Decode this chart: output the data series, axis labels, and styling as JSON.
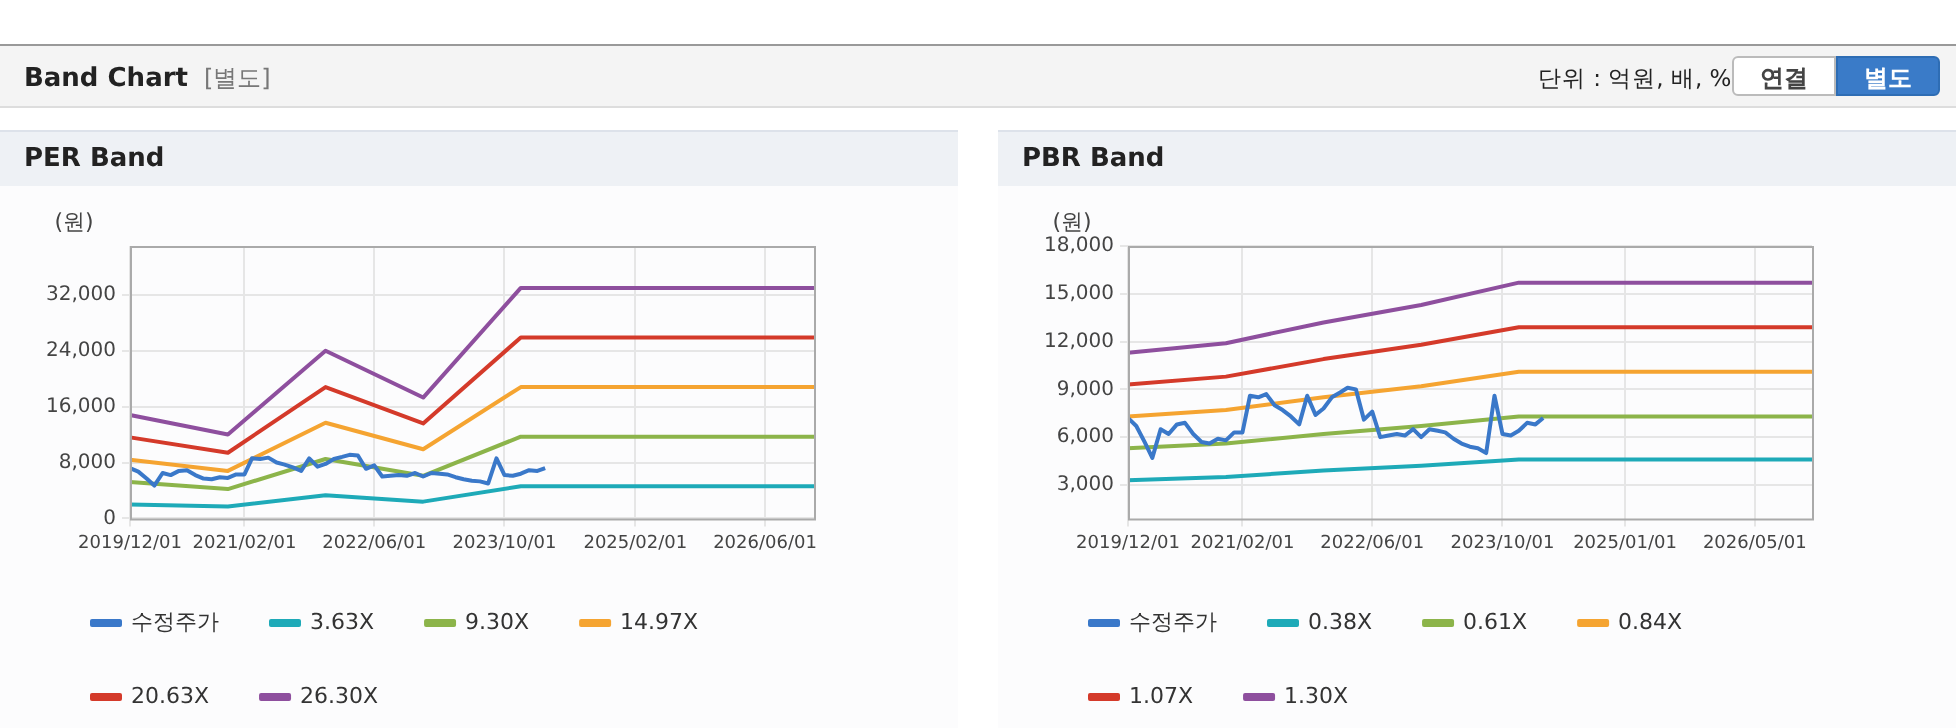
{
  "chart_data": [
    {
      "type": "other",
      "title": "Band Chart",
      "subtitle": "[별도]",
      "annotations": [
        "단위 : 억원, 배, %",
        "연결",
        "별도"
      ]
    },
    {
      "type": "line",
      "title": "PER Band",
      "ylabel": "(원)",
      "legend": "bottom",
      "grid": true,
      "marker": "none",
      "line_style": "solid",
      "xlim": [
        "2019-12-01",
        "2026-12-01"
      ],
      "xticks": [
        {
          "value": "2019-12-01",
          "label": "2019/12/01"
        },
        {
          "value": "2021-02-01",
          "label": "2021/02/01"
        },
        {
          "value": "2022-06-01",
          "label": "2022/06/01"
        },
        {
          "value": "2023-10-01",
          "label": "2023/10/01"
        },
        {
          "value": "2025-02-01",
          "label": "2025/02/01"
        },
        {
          "value": "2026-06-01",
          "label": "2026/06/01"
        }
      ],
      "ylim": [
        0,
        39000
      ],
      "yticks": [
        0,
        {
          "value": 8000,
          "label": "8,000"
        },
        {
          "value": 16000,
          "label": "16,000"
        },
        {
          "value": 24000,
          "label": "24,000"
        },
        {
          "value": 32000,
          "label": "32,000"
        }
      ],
      "series": [
        {
          "name": "수정주가",
          "color": "#3a78c9",
          "x": [
            "2019-12",
            "2020-01",
            "2020-02",
            "2020-03",
            "2020-04",
            "2020-05",
            "2020-06",
            "2020-07",
            "2020-08",
            "2020-09",
            "2020-10",
            "2020-11",
            "2020-12",
            "2021-01",
            "2021-02",
            "2021-03",
            "2021-04",
            "2021-05",
            "2021-06",
            "2021-07",
            "2021-08",
            "2021-09",
            "2021-10",
            "2021-11",
            "2021-12",
            "2022-01",
            "2022-02",
            "2022-03",
            "2022-04",
            "2022-05",
            "2022-06",
            "2022-07",
            "2022-08",
            "2022-09",
            "2022-10",
            "2022-11",
            "2022-12",
            "2023-01",
            "2023-02",
            "2023-03",
            "2023-04",
            "2023-05",
            "2023-06",
            "2023-07",
            "2023-08",
            "2023-09",
            "2023-10",
            "2023-11",
            "2023-12",
            "2024-01",
            "2024-02",
            "2024-03"
          ],
          "values": [
            7200,
            6700,
            5700,
            4700,
            6500,
            6200,
            6800,
            6900,
            6200,
            5700,
            5600,
            5900,
            5800,
            6300,
            6300,
            8600,
            8500,
            8700,
            8000,
            7700,
            7300,
            6800,
            8600,
            7400,
            7800,
            8500,
            8800,
            9100,
            9000,
            7100,
            7600,
            6000,
            6100,
            6200,
            6100,
            6500,
            6000,
            6500,
            6400,
            6300,
            5900,
            5600,
            5400,
            5300,
            5000,
            8600,
            6200,
            6100,
            6400,
            6900,
            6800,
            7200
          ]
        },
        {
          "name": "3.63X",
          "color": "#1eaab8",
          "x": [
            "2019-12",
            "2020-12",
            "2021-12",
            "2022-12",
            "2023-12",
            "2026-12"
          ],
          "values": [
            2000,
            1700,
            3300,
            2400,
            4600,
            4600
          ]
        },
        {
          "name": "9.30X",
          "color": "#8cb44a",
          "x": [
            "2019-12",
            "2020-12",
            "2021-12",
            "2022-12",
            "2023-12",
            "2026-12"
          ],
          "values": [
            5200,
            4200,
            8500,
            6100,
            11700,
            11700
          ]
        },
        {
          "name": "14.97X",
          "color": "#f5a431",
          "x": [
            "2019-12",
            "2020-12",
            "2021-12",
            "2022-12",
            "2023-12",
            "2026-12"
          ],
          "values": [
            8400,
            6800,
            13700,
            9900,
            18800,
            18800
          ]
        },
        {
          "name": "20.63X",
          "color": "#d43a2a",
          "x": [
            "2019-12",
            "2020-12",
            "2021-12",
            "2022-12",
            "2023-12",
            "2026-12"
          ],
          "values": [
            11600,
            9400,
            18800,
            13600,
            25900,
            25900
          ]
        },
        {
          "name": "26.30X",
          "color": "#8e4f9e",
          "x": [
            "2019-12",
            "2020-12",
            "2021-12",
            "2022-12",
            "2023-12",
            "2026-12"
          ],
          "values": [
            14800,
            12000,
            24000,
            17300,
            33000,
            33000
          ]
        }
      ]
    },
    {
      "type": "line",
      "title": "PBR Band",
      "ylabel": "(원)",
      "legend": "bottom",
      "grid": true,
      "marker": "none",
      "line_style": "solid",
      "xlim": [
        "2019-12-01",
        "2026-12-01"
      ],
      "xticks": [
        {
          "value": "2019-12-01",
          "label": "2019/12/01"
        },
        {
          "value": "2021-02-01",
          "label": "2021/02/01"
        },
        {
          "value": "2022-06-01",
          "label": "2022/06/01"
        },
        {
          "value": "2023-10-01",
          "label": "2023/10/01"
        },
        {
          "value": "2025-01-01",
          "label": "2025/01/01"
        },
        {
          "value": "2026-05-01",
          "label": "2026/05/01"
        }
      ],
      "ylim": [
        900,
        18000
      ],
      "yticks": [
        {
          "value": 3000,
          "label": "3,000"
        },
        {
          "value": 6000,
          "label": "6,000"
        },
        {
          "value": 9000,
          "label": "9,000"
        },
        {
          "value": 12000,
          "label": "12,000"
        },
        {
          "value": 15000,
          "label": "15,000"
        },
        {
          "value": 18000,
          "label": "18,000"
        }
      ],
      "series": [
        {
          "name": "수정주가",
          "color": "#3a78c9",
          "x": [
            "2019-12",
            "2020-01",
            "2020-02",
            "2020-03",
            "2020-04",
            "2020-05",
            "2020-06",
            "2020-07",
            "2020-08",
            "2020-09",
            "2020-10",
            "2020-11",
            "2020-12",
            "2021-01",
            "2021-02",
            "2021-03",
            "2021-04",
            "2021-05",
            "2021-06",
            "2021-07",
            "2021-08",
            "2021-09",
            "2021-10",
            "2021-11",
            "2021-12",
            "2022-01",
            "2022-02",
            "2022-03",
            "2022-04",
            "2022-05",
            "2022-06",
            "2022-07",
            "2022-08",
            "2022-09",
            "2022-10",
            "2022-11",
            "2022-12",
            "2023-01",
            "2023-02",
            "2023-03",
            "2023-04",
            "2023-05",
            "2023-06",
            "2023-07",
            "2023-08",
            "2023-09",
            "2023-10",
            "2023-11",
            "2023-12",
            "2024-01",
            "2024-02",
            "2024-03"
          ],
          "values": [
            7200,
            6700,
            5700,
            4700,
            6500,
            6200,
            6800,
            6900,
            6200,
            5700,
            5600,
            5900,
            5800,
            6300,
            6300,
            8600,
            8500,
            8700,
            8000,
            7700,
            7300,
            6800,
            8600,
            7400,
            7800,
            8500,
            8800,
            9100,
            9000,
            7100,
            7600,
            6000,
            6100,
            6200,
            6100,
            6500,
            6000,
            6500,
            6400,
            6300,
            5900,
            5600,
            5400,
            5300,
            5000,
            8600,
            6200,
            6100,
            6400,
            6900,
            6800,
            7200
          ]
        },
        {
          "name": "0.38X",
          "color": "#1eaab8",
          "x": [
            "2019-12",
            "2020-12",
            "2021-12",
            "2022-12",
            "2023-12",
            "2026-12"
          ],
          "values": [
            3300,
            3500,
            3900,
            4200,
            4600,
            4600
          ]
        },
        {
          "name": "0.61X",
          "color": "#8cb44a",
          "x": [
            "2019-12",
            "2020-12",
            "2021-12",
            "2022-12",
            "2023-12",
            "2026-12"
          ],
          "values": [
            5300,
            5600,
            6200,
            6700,
            7300,
            7300
          ]
        },
        {
          "name": "0.84X",
          "color": "#f5a431",
          "x": [
            "2019-12",
            "2020-12",
            "2021-12",
            "2022-12",
            "2023-12",
            "2026-12"
          ],
          "values": [
            7300,
            7700,
            8500,
            9200,
            10100,
            10100
          ]
        },
        {
          "name": "1.07X",
          "color": "#d43a2a",
          "x": [
            "2019-12",
            "2020-12",
            "2021-12",
            "2022-12",
            "2023-12",
            "2026-12"
          ],
          "values": [
            9300,
            9800,
            10900,
            11800,
            12900,
            12900
          ]
        },
        {
          "name": "1.30X",
          "color": "#8e4f9e",
          "x": [
            "2019-12",
            "2020-12",
            "2021-12",
            "2022-12",
            "2023-12",
            "2026-12"
          ],
          "values": [
            11300,
            11900,
            13200,
            14300,
            15700,
            15700
          ]
        }
      ]
    }
  ]
}
